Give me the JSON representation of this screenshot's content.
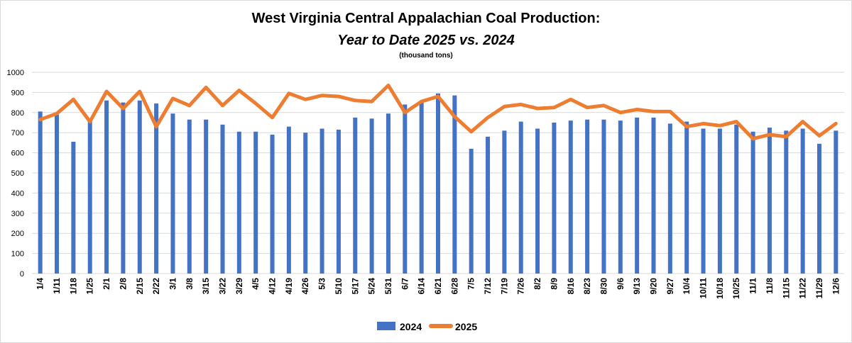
{
  "chart_data": {
    "type": "bar",
    "title": "West Virginia Central Appalachian Coal Production:",
    "subtitle": "Year to Date 2025 vs. 2024",
    "units_note": "(thousand tons)",
    "xlabel": "",
    "ylabel": "",
    "ylim": [
      0,
      1000
    ],
    "yticks": [
      0,
      100,
      200,
      300,
      400,
      500,
      600,
      700,
      800,
      900,
      1000
    ],
    "grid": true,
    "legend_position": "bottom",
    "categories": [
      "1/4",
      "1/11",
      "1/18",
      "1/25",
      "2/1",
      "2/8",
      "2/15",
      "2/22",
      "3/1",
      "3/8",
      "3/15",
      "3/22",
      "3/29",
      "4/5",
      "4/12",
      "4/19",
      "4/26",
      "5/3",
      "5/10",
      "5/17",
      "5/24",
      "5/31",
      "6/7",
      "6/14",
      "6/21",
      "6/28",
      "7/5",
      "7/12",
      "7/19",
      "7/26",
      "8/2",
      "8/9",
      "8/16",
      "8/23",
      "8/30",
      "9/6",
      "9/13",
      "9/20",
      "9/27",
      "10/4",
      "10/11",
      "10/18",
      "10/25",
      "11/1",
      "11/8",
      "11/15",
      "11/22",
      "11/29",
      "12/6"
    ],
    "series": [
      {
        "name": "2024",
        "type": "bar",
        "color": "#4472c4",
        "values": [
          805,
          790,
          655,
          765,
          860,
          850,
          860,
          845,
          795,
          765,
          765,
          740,
          705,
          705,
          690,
          730,
          700,
          720,
          715,
          775,
          770,
          795,
          840,
          855,
          895,
          885,
          620,
          680,
          710,
          755,
          720,
          750,
          760,
          765,
          765,
          760,
          775,
          775,
          745,
          755,
          720,
          720,
          740,
          705,
          725,
          710,
          720,
          645,
          710
        ]
      },
      {
        "name": "2025",
        "type": "line",
        "color": "#ed7d31",
        "values": [
          765,
          795,
          865,
          755,
          905,
          820,
          905,
          730,
          870,
          835,
          925,
          835,
          910,
          845,
          775,
          895,
          865,
          885,
          880,
          860,
          855,
          935,
          800,
          855,
          880,
          780,
          705,
          775,
          830,
          840,
          820,
          825,
          865,
          825,
          835,
          800,
          815,
          805,
          805,
          730,
          745,
          735,
          755,
          670,
          690,
          680,
          755,
          685,
          745
        ]
      }
    ]
  }
}
